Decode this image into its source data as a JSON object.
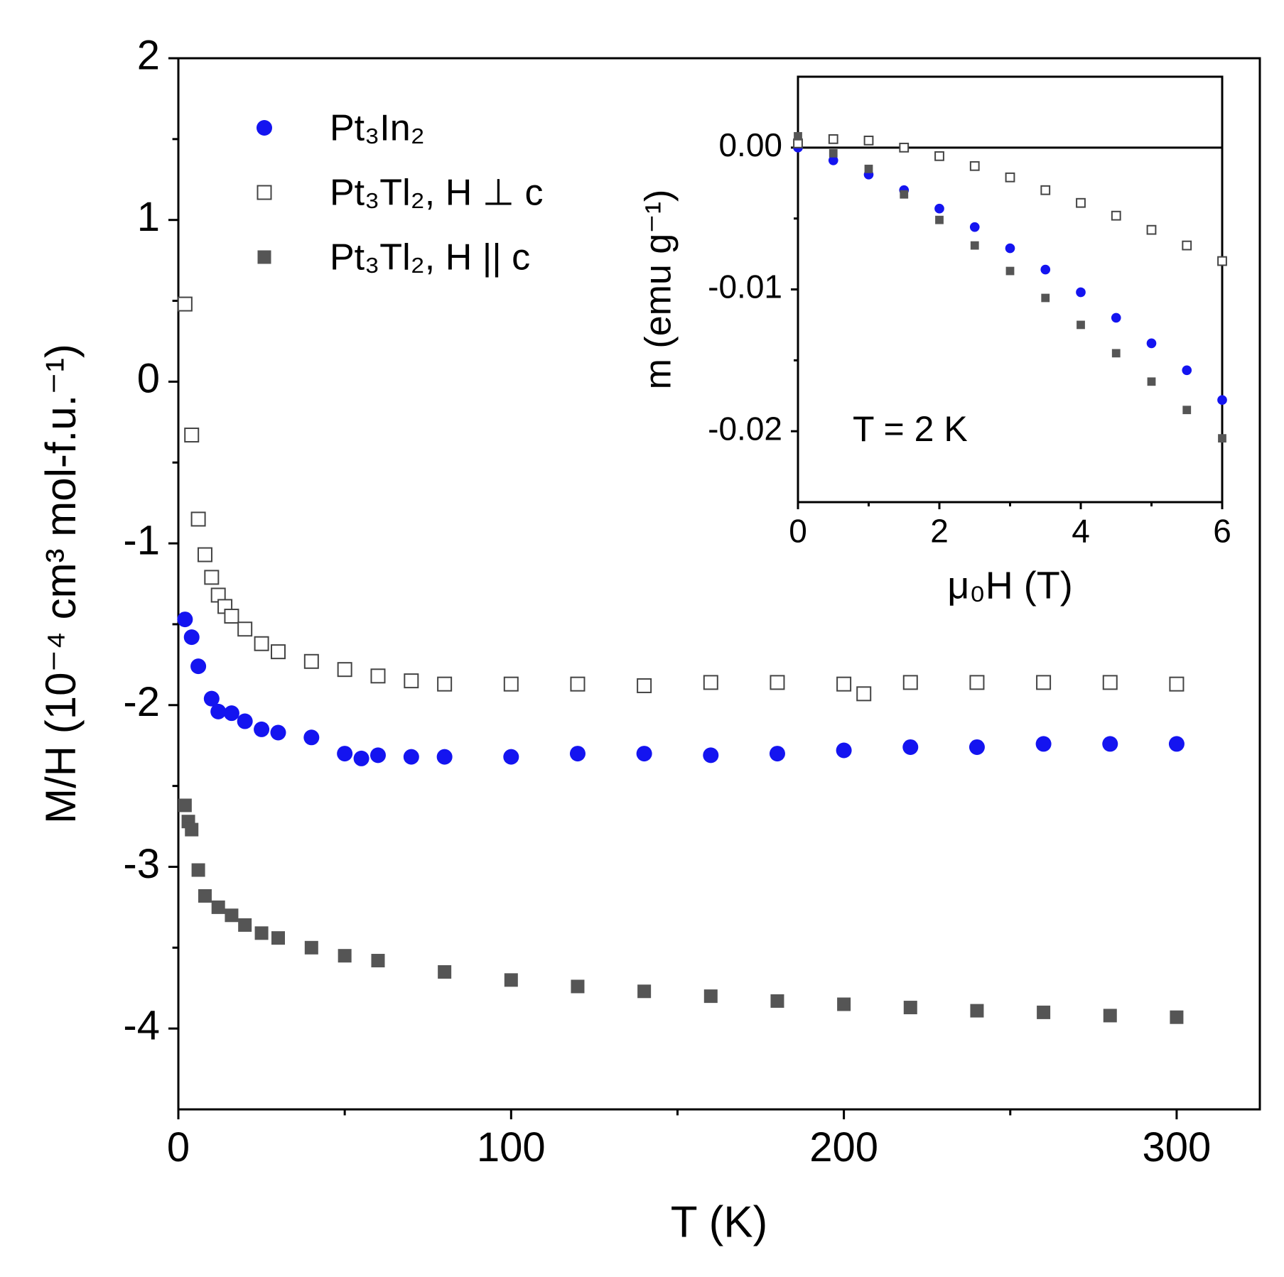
{
  "chart_data": [
    {
      "type": "scatter",
      "xlabel": "T (K)",
      "ylabel": "M/H (10⁻⁴ cm³ mol-f.u.⁻¹)",
      "xlim": [
        0,
        325
      ],
      "xticks": [
        0,
        100,
        200,
        300
      ],
      "xticks_minor": [
        50,
        150,
        250
      ],
      "ylim": [
        -4.5,
        2
      ],
      "yticks": [
        -4,
        -3,
        -2,
        -1,
        0,
        1,
        2
      ],
      "yticks_minor": [
        -3.5,
        -2.5,
        -1.5,
        -0.5,
        0.5,
        1.5
      ],
      "legend": "upper left",
      "series": [
        {
          "name": "Pt₃In₂",
          "color": "#1414f0",
          "marker": "circle",
          "x": [
            2,
            4,
            6,
            10,
            12,
            16,
            20,
            25,
            30,
            40,
            50,
            55,
            60,
            70,
            80,
            100,
            120,
            140,
            160,
            180,
            200,
            220,
            240,
            260,
            280,
            300
          ],
          "values": [
            -1.47,
            -1.58,
            -1.76,
            -1.96,
            -2.04,
            -2.05,
            -2.1,
            -2.15,
            -2.17,
            -2.2,
            -2.3,
            -2.33,
            -2.31,
            -2.32,
            -2.32,
            -2.32,
            -2.3,
            -2.3,
            -2.31,
            -2.3,
            -2.28,
            -2.26,
            -2.26,
            -2.24,
            -2.24,
            -2.24
          ]
        },
        {
          "name": "Pt₃Tl₂, H ⊥ c",
          "color": "#444444",
          "marker": "open-square",
          "x": [
            2,
            4,
            6,
            8,
            10,
            12,
            14,
            16,
            20,
            25,
            30,
            40,
            50,
            60,
            70,
            80,
            100,
            120,
            140,
            160,
            180,
            200,
            206,
            220,
            240,
            260,
            280,
            300
          ],
          "values": [
            0.48,
            -0.33,
            -0.85,
            -1.07,
            -1.21,
            -1.32,
            -1.39,
            -1.45,
            -1.53,
            -1.62,
            -1.67,
            -1.73,
            -1.78,
            -1.82,
            -1.85,
            -1.87,
            -1.87,
            -1.87,
            -1.88,
            -1.86,
            -1.86,
            -1.87,
            -1.93,
            -1.86,
            -1.86,
            -1.86,
            -1.86,
            -1.87
          ]
        },
        {
          "name": "Pt₃Tl₂, H || c",
          "color": "#555555",
          "marker": "square",
          "x": [
            2,
            3,
            4,
            6,
            8,
            12,
            16,
            20,
            25,
            30,
            40,
            50,
            60,
            80,
            100,
            120,
            140,
            160,
            180,
            200,
            220,
            240,
            260,
            280,
            300
          ],
          "values": [
            -2.62,
            -2.72,
            -2.77,
            -3.02,
            -3.18,
            -3.25,
            -3.3,
            -3.36,
            -3.41,
            -3.44,
            -3.5,
            -3.55,
            -3.58,
            -3.65,
            -3.7,
            -3.74,
            -3.77,
            -3.8,
            -3.83,
            -3.85,
            -3.87,
            -3.89,
            -3.9,
            -3.92,
            -3.93
          ]
        }
      ]
    },
    {
      "type": "scatter",
      "xlabel": "μ₀H (T)",
      "ylabel": "m (emu g⁻¹)",
      "annotation": "T = 2 K",
      "xlim": [
        0,
        6
      ],
      "xticks": [
        0,
        2,
        4,
        6
      ],
      "xticks_minor": [
        1,
        3,
        5
      ],
      "ylim": [
        -0.025,
        0.005
      ],
      "yticks": [
        {
          "value": -0.02,
          "label": "-0.02"
        },
        {
          "value": -0.01,
          "label": "-0.01"
        },
        {
          "value": 0,
          "label": "0.00"
        }
      ],
      "yticks_minor": [
        -0.015,
        -0.005
      ],
      "zero_line": true,
      "series": [
        {
          "color": "#1414f0",
          "marker": "circle",
          "x": [
            0,
            0.5,
            1,
            1.5,
            2,
            2.5,
            3,
            3.5,
            4,
            4.5,
            5,
            5.5,
            6
          ],
          "values": [
            0,
            -0.0009,
            -0.0019,
            -0.003,
            -0.0043,
            -0.0056,
            -0.0071,
            -0.0086,
            -0.0102,
            -0.012,
            -0.0138,
            -0.0157,
            -0.0178
          ]
        },
        {
          "color": "#444444",
          "marker": "open-square",
          "x": [
            0,
            0.5,
            1,
            1.5,
            2,
            2.5,
            3,
            3.5,
            4,
            4.5,
            5,
            5.5,
            6
          ],
          "values": [
            0.0003,
            0.0006,
            0.0005,
            0,
            -0.0006,
            -0.0013,
            -0.0021,
            -0.003,
            -0.0039,
            -0.0048,
            -0.0058,
            -0.0069,
            -0.008
          ]
        },
        {
          "color": "#555555",
          "marker": "square",
          "x": [
            0,
            0.5,
            1,
            1.5,
            2,
            2.5,
            3,
            3.5,
            4,
            4.5,
            5,
            5.5,
            6
          ],
          "values": [
            0.0008,
            -0.0004,
            -0.0015,
            -0.0033,
            -0.0051,
            -0.0069,
            -0.0087,
            -0.0106,
            -0.0125,
            -0.0145,
            -0.0165,
            -0.0185,
            -0.0205
          ]
        }
      ]
    }
  ]
}
